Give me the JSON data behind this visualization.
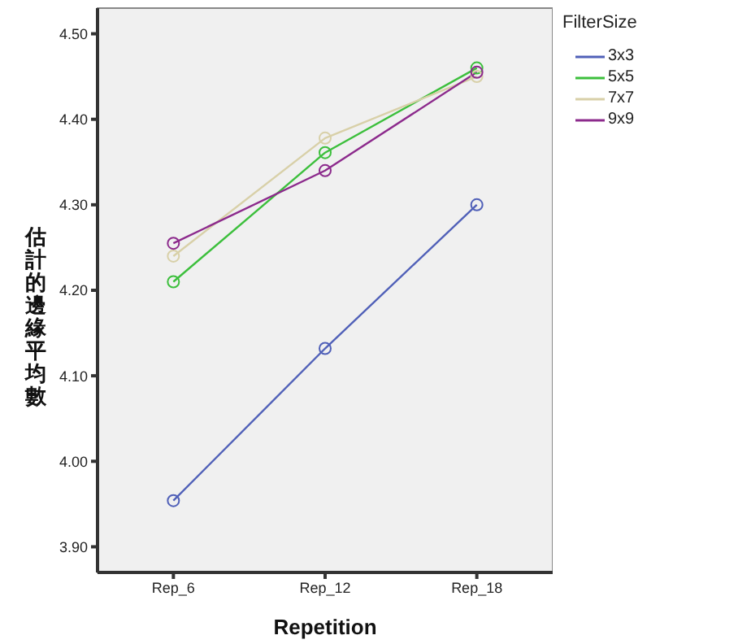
{
  "chart_data": {
    "type": "line",
    "xlabel": "Repetition",
    "ylabel": "估計的邊緣平均數",
    "legend_title": "FilterSize",
    "categories": [
      "Rep_6",
      "Rep_12",
      "Rep_18"
    ],
    "series": [
      {
        "name": "3x3",
        "color": "#5060b8",
        "values": [
          3.954,
          4.132,
          4.3
        ]
      },
      {
        "name": "5x5",
        "color": "#3cbf3c",
        "values": [
          4.21,
          4.361,
          4.46
        ]
      },
      {
        "name": "7x7",
        "color": "#d8d0a8",
        "values": [
          4.24,
          4.378,
          4.45
        ]
      },
      {
        "name": "9x9",
        "color": "#8c2a8c",
        "values": [
          4.255,
          4.34,
          4.455
        ]
      }
    ],
    "ylim": [
      3.87,
      4.53
    ],
    "yticks": [
      {
        "value": 3.9,
        "label": "3.90"
      },
      {
        "value": 4.0,
        "label": "4.00"
      },
      {
        "value": 4.1,
        "label": "4.10"
      },
      {
        "value": 4.2,
        "label": "4.20"
      },
      {
        "value": 4.3,
        "label": "4.30"
      },
      {
        "value": 4.4,
        "label": "4.40"
      },
      {
        "value": 4.5,
        "label": "4.50"
      }
    ],
    "marker": "circle",
    "legend": "top right"
  }
}
